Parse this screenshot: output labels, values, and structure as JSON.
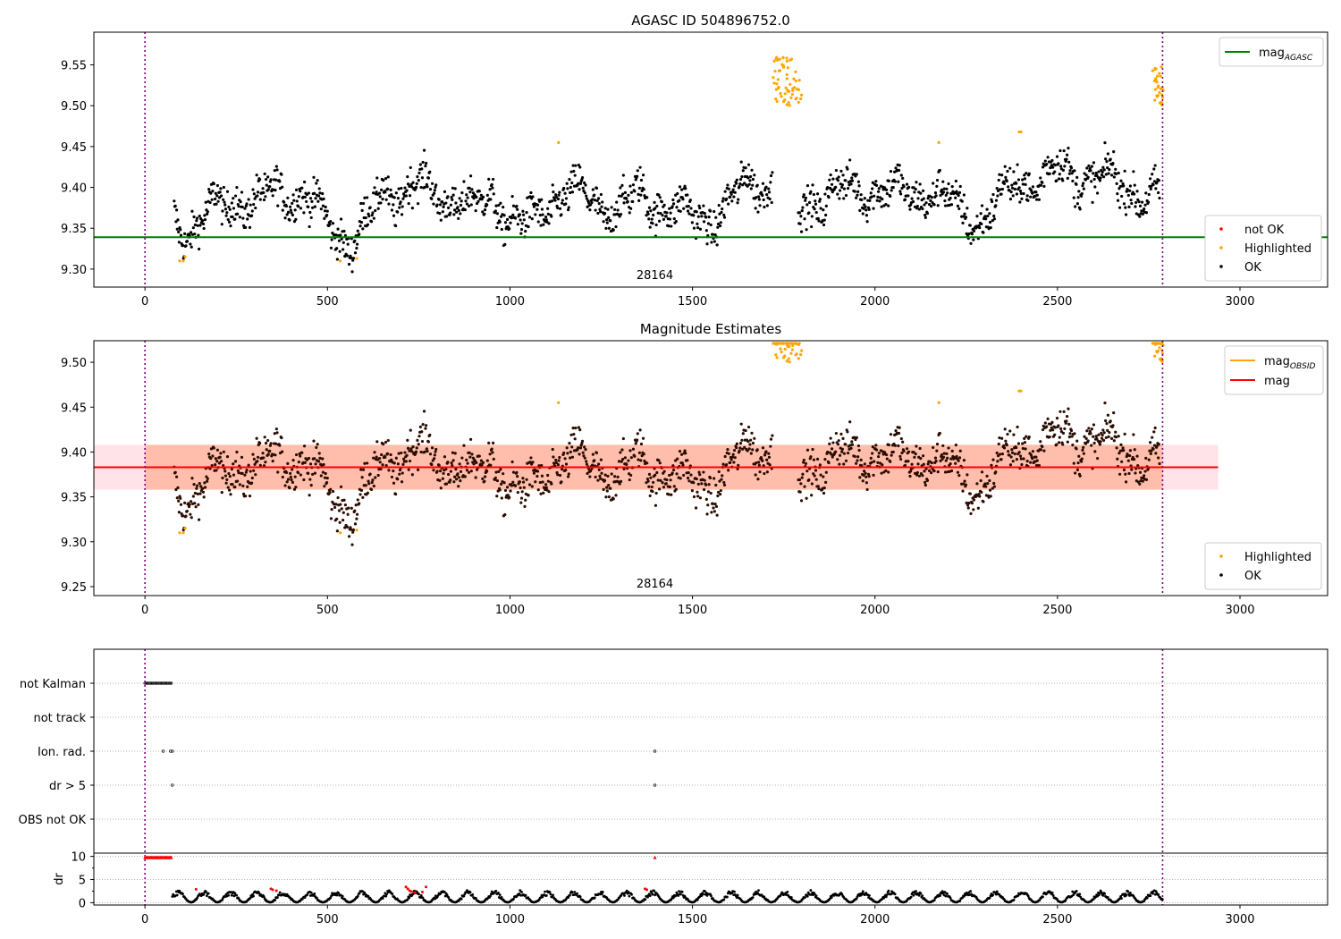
{
  "chart_data": [
    {
      "type": "scatter",
      "title": "AGASC ID 504896752.0",
      "annotation": "28164",
      "xlim": [
        -140,
        3240
      ],
      "ylim": [
        9.278,
        9.59
      ],
      "x_ticks": [
        0,
        500,
        1000,
        1500,
        2000,
        2500,
        3000
      ],
      "y_ticks": [
        9.3,
        9.35,
        9.4,
        9.45,
        9.5,
        9.55
      ],
      "y_tick_labels": [
        "9.30",
        "9.35",
        "9.40",
        "9.45",
        "9.50",
        "9.55"
      ],
      "obs_boundaries": [
        0,
        2788
      ],
      "reference_lines": [
        {
          "name": "mag_AGASC",
          "label_main": "mag",
          "label_sub": "AGASC",
          "value": 9.339,
          "color": "#008000"
        }
      ],
      "legend_lines_position": "top-right",
      "legend_points_position": "bottom-right",
      "legend_points": [
        {
          "name": "not OK",
          "color": "#ff0000"
        },
        {
          "name": "Highlighted",
          "color": "#ffa500"
        },
        {
          "name": "OK",
          "color": "#000000"
        }
      ],
      "ok_trend": [
        [
          80,
          9.37
        ],
        [
          120,
          9.34
        ],
        [
          160,
          9.36
        ],
        [
          200,
          9.38
        ],
        [
          250,
          9.385
        ],
        [
          300,
          9.375
        ],
        [
          360,
          9.4
        ],
        [
          420,
          9.39
        ],
        [
          470,
          9.375
        ],
        [
          520,
          9.35
        ],
        [
          560,
          9.33
        ],
        [
          600,
          9.35
        ],
        [
          650,
          9.395
        ],
        [
          700,
          9.39
        ],
        [
          750,
          9.405
        ],
        [
          800,
          9.39
        ],
        [
          850,
          9.385
        ],
        [
          900,
          9.375
        ],
        [
          950,
          9.39
        ],
        [
          1000,
          9.36
        ],
        [
          1050,
          9.355
        ],
        [
          1100,
          9.375
        ],
        [
          1150,
          9.395
        ],
        [
          1200,
          9.39
        ],
        [
          1250,
          9.375
        ],
        [
          1300,
          9.375
        ],
        [
          1350,
          9.39
        ],
        [
          1400,
          9.38
        ],
        [
          1450,
          9.375
        ],
        [
          1500,
          9.365
        ],
        [
          1550,
          9.36
        ],
        [
          1600,
          9.38
        ],
        [
          1650,
          9.405
        ],
        [
          1700,
          9.405
        ],
        [
          1730,
          9.4
        ],
        [
          1790,
          9.375
        ],
        [
          1850,
          9.385
        ],
        [
          1900,
          9.4
        ],
        [
          1950,
          9.395
        ],
        [
          2000,
          9.4
        ],
        [
          2050,
          9.395
        ],
        [
          2100,
          9.39
        ],
        [
          2150,
          9.395
        ],
        [
          2200,
          9.385
        ],
        [
          2250,
          9.365
        ],
        [
          2300,
          9.36
        ],
        [
          2350,
          9.39
        ],
        [
          2400,
          9.41
        ],
        [
          2450,
          9.405
        ],
        [
          2500,
          9.425
        ],
        [
          2550,
          9.415
        ],
        [
          2600,
          9.41
        ],
        [
          2650,
          9.41
        ],
        [
          2700,
          9.4
        ],
        [
          2750,
          9.385
        ],
        [
          2780,
          9.39
        ]
      ],
      "ok_spread": 0.025,
      "ok_gaps": [
        [
          1720,
          1790
        ]
      ],
      "highlighted_clusters": [
        {
          "x": [
            1720,
            1800
          ],
          "y": [
            9.5,
            9.56
          ],
          "count": 60
        },
        {
          "x": [
            2760,
            2790
          ],
          "y": [
            9.5,
            9.548
          ],
          "count": 30
        }
      ],
      "highlighted_points": [
        [
          95,
          9.31
        ],
        [
          105,
          9.31
        ],
        [
          110,
          9.315
        ],
        [
          535,
          9.31
        ],
        [
          580,
          9.313
        ],
        [
          1133,
          9.455
        ],
        [
          2175,
          9.455
        ],
        [
          2395,
          9.468
        ],
        [
          2400,
          9.468
        ]
      ]
    },
    {
      "type": "scatter",
      "title": "Magnitude Estimates",
      "annotation": "28164",
      "xlim": [
        -140,
        3240
      ],
      "ylim": [
        9.24,
        9.524
      ],
      "x_ticks": [
        0,
        500,
        1000,
        1500,
        2000,
        2500,
        3000
      ],
      "y_ticks": [
        9.25,
        9.3,
        9.35,
        9.4,
        9.45,
        9.5
      ],
      "y_tick_labels": [
        "9.25",
        "9.30",
        "9.35",
        "9.40",
        "9.45",
        "9.50"
      ],
      "obs_boundaries": [
        0,
        2788
      ],
      "reference_lines": [
        {
          "name": "mag_OBSID",
          "label_main": "mag",
          "label_sub": "OBSID",
          "value": 9.383,
          "color": "#ffa500"
        },
        {
          "name": "mag",
          "label_main": "mag",
          "label_sub": "",
          "value": 9.383,
          "color": "#ff0000"
        }
      ],
      "bands": [
        {
          "x": [
            -140,
            2940
          ],
          "y": [
            9.358,
            9.408
          ],
          "color": "#ffc0cb"
        },
        {
          "x": [
            0,
            2788
          ],
          "y": [
            9.358,
            9.408
          ],
          "color": "#ffa07a"
        }
      ],
      "legend_lines_position": "top-right",
      "legend_points_position": "bottom-right",
      "legend_points": [
        {
          "name": "Highlighted",
          "color": "#ffa500"
        },
        {
          "name": "OK",
          "color": "#000000"
        }
      ]
    },
    {
      "type": "scatter",
      "title": "",
      "categories": [
        "not Kalman",
        "not track",
        "Ion. rad.",
        "dr > 5",
        "OBS not OK"
      ],
      "xlim": [
        -140,
        3240
      ],
      "obs_boundaries": [
        0,
        2788
      ],
      "flags": {
        "not Kalman": {
          "x_range": [
            0,
            72
          ]
        },
        "not track": {
          "x_range": []
        },
        "Ion. rad.": {
          "x": [
            50,
            70,
            75,
            1397
          ]
        },
        "dr > 5": {
          "x": [
            75,
            1397
          ]
        },
        "OBS not OK": {
          "x_range": []
        }
      }
    },
    {
      "type": "scatter",
      "ylabel": "dr",
      "xlim": [
        -140,
        3240
      ],
      "ylim": [
        -0.5,
        10.7
      ],
      "x_ticks": [
        0,
        500,
        1000,
        1500,
        2000,
        2500,
        3000
      ],
      "x_tick_labels": [
        "0",
        "500",
        "1000",
        "1500",
        "2000",
        "2500",
        "3000"
      ],
      "y_ticks": [
        0,
        5,
        10
      ],
      "y_tick_labels": [
        "0",
        "5",
        "10"
      ],
      "obs_boundaries": [
        0,
        2788
      ],
      "clipped_points": [
        [
          0,
          72,
          9.8
        ],
        [
          1397,
          1397,
          9.8
        ]
      ],
      "red_points": [
        [
          140,
          2.9
        ],
        [
          345,
          3.0
        ],
        [
          350,
          2.8
        ],
        [
          360,
          2.6
        ],
        [
          715,
          3.4
        ],
        [
          720,
          3.0
        ],
        [
          725,
          2.6
        ],
        [
          730,
          2.4
        ],
        [
          740,
          2.2
        ],
        [
          760,
          2.3
        ],
        [
          770,
          3.4
        ],
        [
          1370,
          3.0
        ],
        [
          1375,
          2.8
        ]
      ],
      "dr_range": [
        0.1,
        2.7
      ]
    }
  ]
}
